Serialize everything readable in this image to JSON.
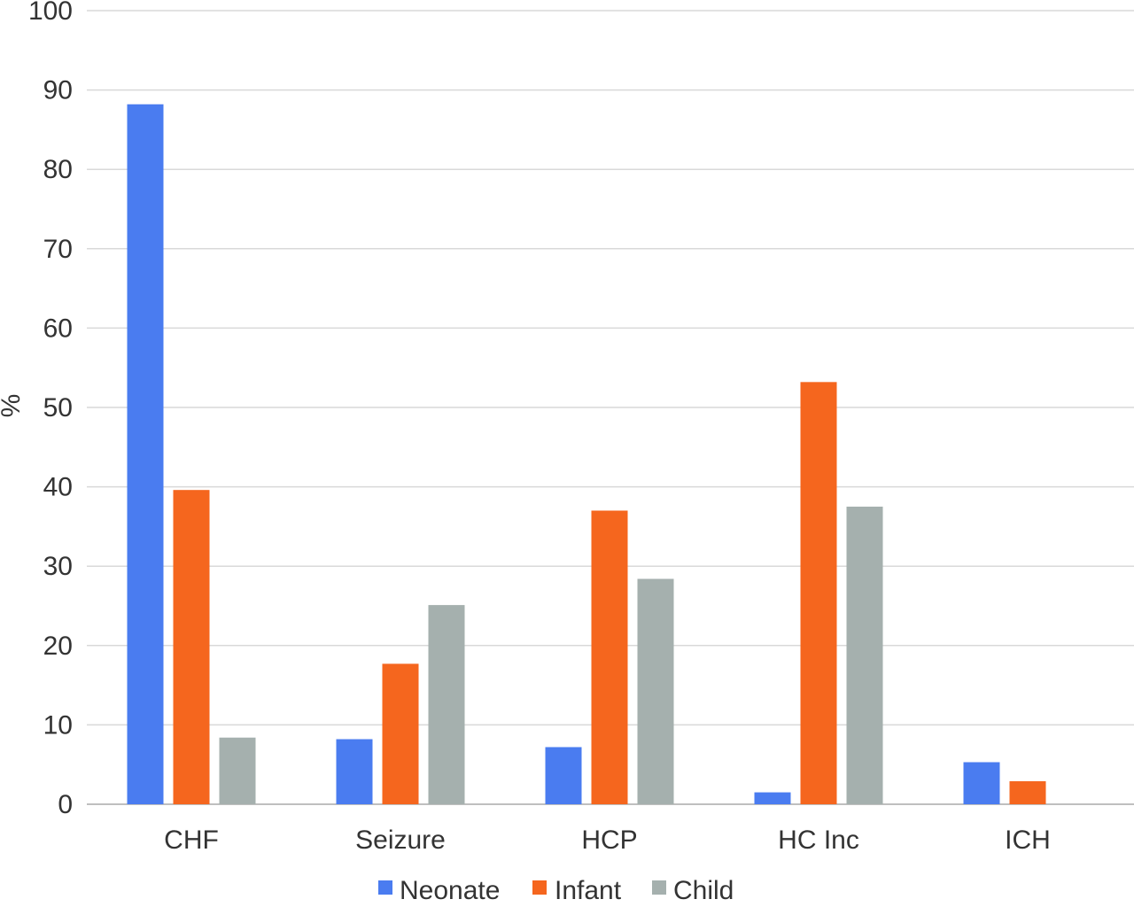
{
  "chart_data": {
    "type": "bar",
    "title": "",
    "xlabel": "",
    "ylabel": "%",
    "ylim": [
      0,
      100
    ],
    "yticks": [
      0,
      10,
      20,
      30,
      40,
      50,
      60,
      70,
      80,
      90,
      100
    ],
    "grid": true,
    "legend_position": "bottom",
    "categories": [
      "CHF",
      "Seizure",
      "HCP",
      "HC Inc",
      "ICH"
    ],
    "series": [
      {
        "name": "Neonate",
        "color": "#4a7cf0",
        "values": [
          88.2,
          8.2,
          7.2,
          1.5,
          5.3
        ]
      },
      {
        "name": "Infant",
        "color": "#f5661e",
        "values": [
          39.6,
          17.7,
          37.0,
          53.2,
          2.9
        ]
      },
      {
        "name": "Child",
        "color": "#a5b0ae",
        "values": [
          8.4,
          25.1,
          28.4,
          37.5,
          0
        ]
      }
    ]
  }
}
